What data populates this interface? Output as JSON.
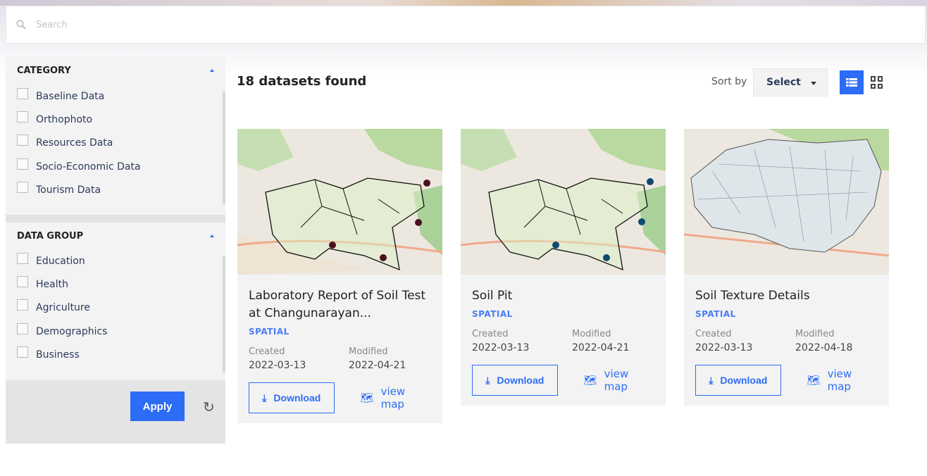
{
  "search": {
    "placeholder": "Search"
  },
  "filters": {
    "category": {
      "title": "CATEGORY",
      "items": [
        "Baseline Data",
        "Orthophoto",
        "Resources Data",
        "Socio-Economic Data",
        "Tourism Data"
      ]
    },
    "data_group": {
      "title": "DATA GROUP",
      "items": [
        "Education",
        "Health",
        "Agriculture",
        "Demographics",
        "Business"
      ]
    },
    "apply_label": "Apply"
  },
  "results": {
    "count_text": "18 datasets found",
    "sort_label": "Sort by",
    "sort_value": "Select"
  },
  "colors": {
    "accent": "#2d6cf6",
    "tag": "#4a7cf7"
  },
  "cards": [
    {
      "title": "Laboratory Report of Soil Test at Changunarayan...",
      "tag": "SPATIAL",
      "created_label": "Created",
      "created": "2022-03-13",
      "modified_label": "Modified",
      "modified": "2022-04-21",
      "download_label": "Download",
      "viewmap_label": "view map",
      "marker_color": "#4a1020"
    },
    {
      "title": "Soil Pit",
      "tag": "SPATIAL",
      "created_label": "Created",
      "created": "2022-03-13",
      "modified_label": "Modified",
      "modified": "2022-04-21",
      "download_label": "Download",
      "viewmap_label": "view map",
      "marker_color": "#0d4a6e"
    },
    {
      "title": "Soil Texture Details",
      "tag": "SPATIAL",
      "created_label": "Created",
      "created": "2022-03-13",
      "modified_label": "Modified",
      "modified": "2022-04-18",
      "download_label": "Download",
      "viewmap_label": "view map"
    }
  ]
}
